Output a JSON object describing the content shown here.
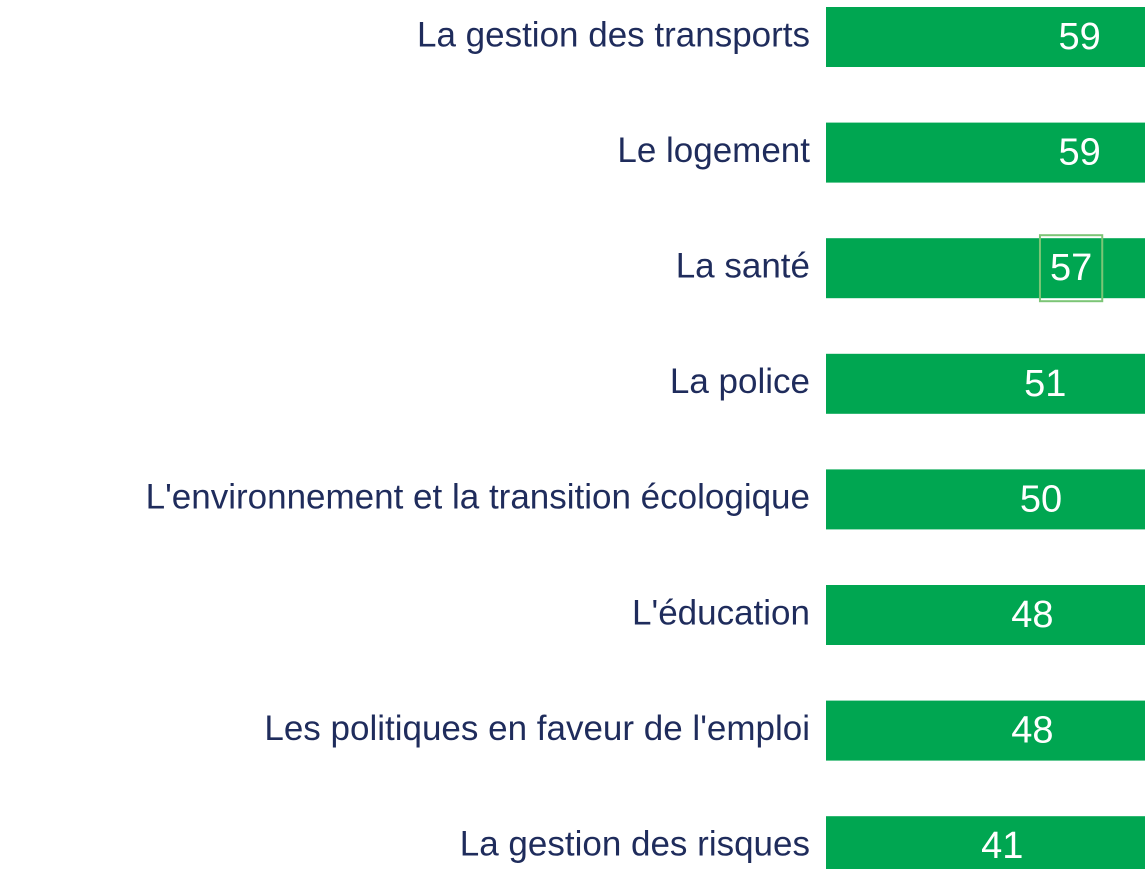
{
  "chart_data": {
    "type": "bar",
    "orientation": "horizontal",
    "categories": [
      "La gestion des transports",
      "Le logement",
      "La santé",
      "La police",
      "L'environnement et la transition écologique",
      "L'éducation",
      "Les politiques en faveur de l'emploi",
      "La gestion des risques"
    ],
    "values": [
      59,
      59,
      57,
      51,
      50,
      48,
      48,
      41
    ],
    "color": "#00a651"
  }
}
